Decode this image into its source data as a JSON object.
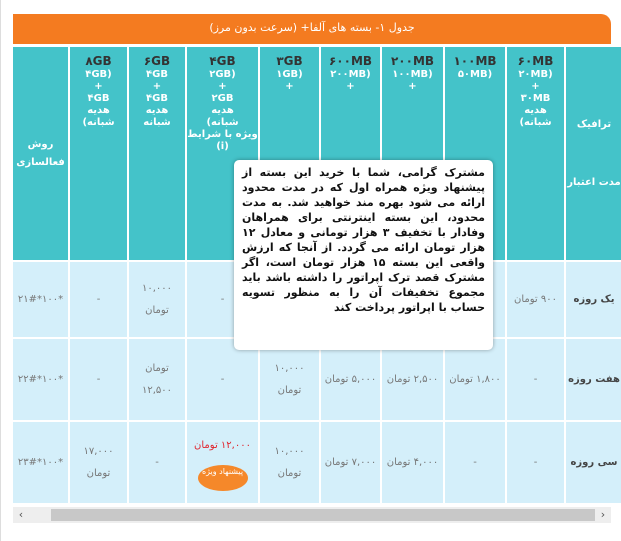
{
  "title": "جدول ۱- بسته های آلفا+ (سرعت بدون مرز)",
  "header": {
    "c0": [
      "ترافیک",
      "مدت اعتبار"
    ],
    "c1": [
      "۶۰MB",
      "(۲۰MB",
      "+",
      "۳۰MB",
      "هدیه",
      "شبانه)"
    ],
    "c2": [
      "۱۰۰MB",
      "(۵۰MB"
    ],
    "c3": [
      "۲۰۰MB",
      "(۱۰۰MB",
      "+"
    ],
    "c4": [
      "۶۰۰MB",
      "(۲۰۰MB",
      "+"
    ],
    "c5": [
      "۳GB",
      "(۱GB",
      "+"
    ],
    "c6": [
      "۴GB",
      "(۲GB",
      "+",
      "۲GB",
      "هدیه",
      "شبانه)",
      "ویژه با شرایط",
      "(i)"
    ],
    "c7": [
      "۶GB",
      "۴GB",
      "+",
      "۴GB",
      "هدیه",
      "شبانه"
    ],
    "c8": [
      "۸GB",
      "(۴GB",
      "+",
      "۴GB",
      "هدیه",
      "شبانه)"
    ],
    "c9": [
      "روش",
      "فعالسازی"
    ]
  },
  "rows": [
    {
      "label": "یک روزه",
      "cells": [
        "۹۰۰ تومان",
        "",
        "",
        "",
        "",
        "-",
        "۱۰,۰۰۰ تومان",
        "-",
        "*۱۰۰*۲۱#"
      ]
    },
    {
      "label": "هفت روزه",
      "cells": [
        "-",
        "۱,۸۰۰ تومان",
        "۲,۵۰۰ تومان",
        "۵,۰۰۰ تومان",
        "۱۰,۰۰۰ تومان",
        "-",
        "تومان ۱۲,۵۰۰",
        "-",
        "*۱۰۰*۲۲#"
      ]
    },
    {
      "label": "سی روزه",
      "cells": [
        "-",
        "-",
        "۴,۰۰۰ تومان",
        "۷,۰۰۰ تومان",
        "۱۰,۰۰۰ تومان",
        "۱۲,۰۰۰ تومان",
        "-",
        "۱۷,۰۰۰ تومان",
        "*۱۰۰*۲۳#"
      ]
    }
  ],
  "badge": "پیشنهاد ویژه",
  "tooltip": "مشترک گرامی، شما با خرید این بسته از پیشنهاد ویژه همراه اول که در مدت محدود ارائه می شود بهره مند خواهید شد. به مدت محدود، این بسته اینترنتی برای همراهان وفادار با تخفیف ۳ هزار تومانی و معادل ۱۲ هزار تومان ارائه می گردد. از آنجا که ارزش واقعی این بسته ۱۵ هزار تومان است، اگر مشترک قصد ترک اپراتور را داشته باشد باید مجموع تخفیفات آن را به منظور تسویه حساب با اپراتور پرداخت کند",
  "colors": {
    "orange": "#f47b20",
    "teal": "#44c3c9",
    "cell": "#d4effa",
    "red": "#e0242e"
  }
}
